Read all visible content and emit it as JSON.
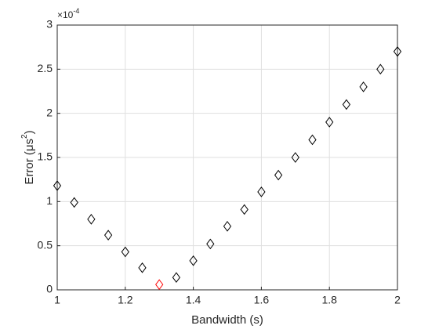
{
  "chart_data": {
    "type": "scatter",
    "marker": "diamond",
    "xlabel": "Bandwidth (s)",
    "ylabel": {
      "text": "Error (μs",
      "sup": "2",
      "end": ")"
    },
    "y_exponent": {
      "base": "×10",
      "power": "-4"
    },
    "x": [
      1,
      1.05,
      1.1,
      1.15,
      1.2,
      1.25,
      1.3,
      1.35,
      1.4,
      1.45,
      1.5,
      1.55,
      1.6,
      1.65,
      1.7,
      1.75,
      1.8,
      1.85,
      1.9,
      1.95,
      2
    ],
    "values": [
      1.18,
      0.99,
      0.8,
      0.62,
      0.43,
      0.25,
      0.06,
      0.14,
      0.33,
      0.52,
      0.72,
      0.91,
      1.11,
      1.3,
      1.5,
      1.7,
      1.9,
      2.1,
      2.3,
      2.5,
      2.7
    ],
    "colors": [
      "#000000",
      "#000000",
      "#000000",
      "#000000",
      "#000000",
      "#000000",
      "#ff0000",
      "#000000",
      "#000000",
      "#000000",
      "#000000",
      "#000000",
      "#000000",
      "#000000",
      "#000000",
      "#000000",
      "#000000",
      "#000000",
      "#000000",
      "#000000",
      "#000000"
    ],
    "xlim": [
      1,
      2
    ],
    "xticks": [
      1,
      1.2,
      1.4,
      1.6,
      1.8,
      2
    ],
    "ylim": [
      0,
      3
    ],
    "yticks": [
      0,
      0.5,
      1,
      1.5,
      2,
      2.5,
      3
    ],
    "grid": true
  }
}
